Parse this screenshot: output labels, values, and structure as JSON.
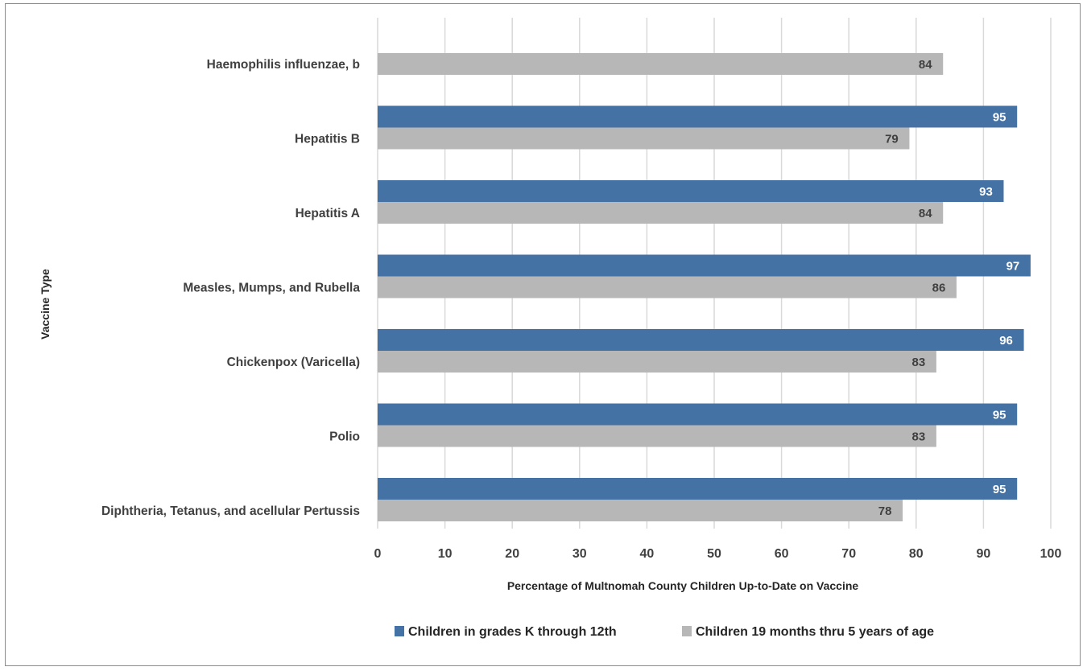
{
  "chart_data": {
    "type": "bar",
    "orientation": "horizontal",
    "title": "",
    "xlabel": "Percentage of Multnomah County Children Up-to-Date on Vaccine",
    "ylabel": "Vaccine Type",
    "xlim": [
      0,
      100
    ],
    "xticks": [
      "0",
      "10",
      "20",
      "30",
      "40",
      "50",
      "60",
      "70",
      "80",
      "90",
      "100"
    ],
    "grid": "vertical",
    "legend_position": "bottom",
    "categories": [
      "Haemophilis influenzae, b",
      "Hepatitis B",
      "Hepatitis A",
      "Measles, Mumps, and Rubella",
      "Chickenpox (Varicella)",
      "Polio",
      "Diphtheria, Tetanus, and acellular Pertussis"
    ],
    "series": [
      {
        "name": "Children in grades K through 12th",
        "color": "#4472a4",
        "label_color": "#ffffff",
        "values": [
          null,
          95,
          93,
          97,
          96,
          95,
          95
        ]
      },
      {
        "name": "Children 19 months thru 5 years of age",
        "color": "#b7b7b7",
        "label_color": "#404040",
        "values": [
          84,
          79,
          84,
          86,
          83,
          83,
          78
        ]
      }
    ]
  }
}
